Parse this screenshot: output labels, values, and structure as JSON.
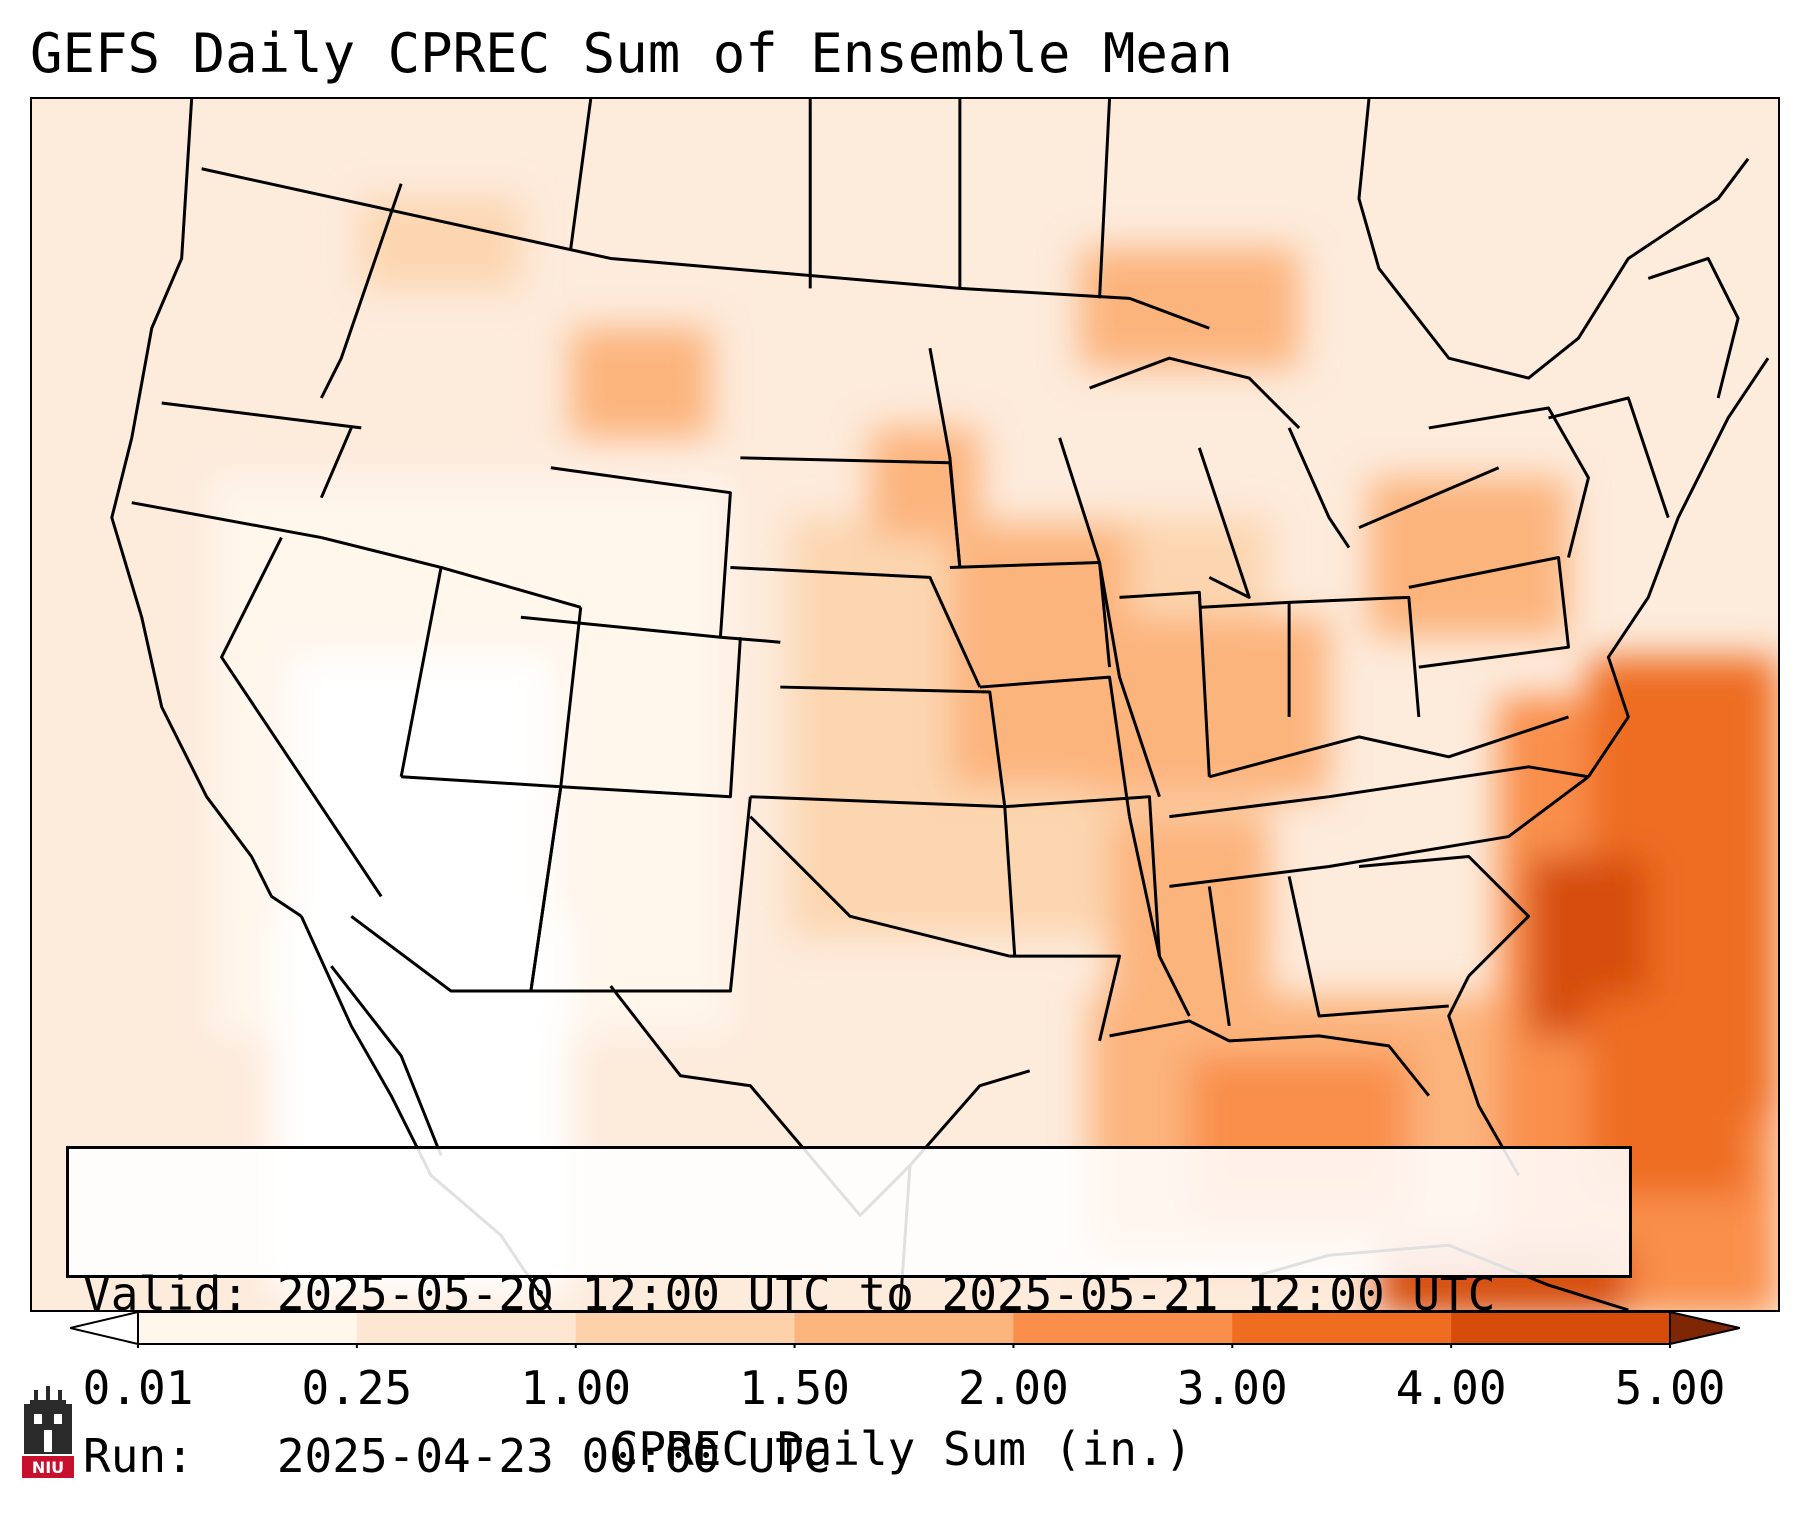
{
  "title": "GEFS Daily CPREC Sum of Ensemble Mean",
  "info": {
    "valid_line": "Valid: 2025-05-20 12:00 UTC to 2025-05-21 12:00 UTC",
    "run_line": "Run:   2025-04-23 00:00 UTC"
  },
  "colorbar": {
    "label": "CPREC Daily Sum (in.)",
    "ticks": [
      "0.01",
      "0.25",
      "1.00",
      "1.50",
      "2.00",
      "3.00",
      "4.00",
      "5.00"
    ],
    "colors": [
      "#fff6ec",
      "#fde7d2",
      "#fdd1a9",
      "#fcb47d",
      "#f98f4b",
      "#ee6d21",
      "#d64d0b",
      "#a83705"
    ],
    "under_color": "#ffffff",
    "over_color": "#7f2704"
  },
  "logo": {
    "text": "NIU",
    "color": "#c8102e"
  },
  "map": {
    "ocean_color": "#fdebdc",
    "border_color": "#000000"
  }
}
